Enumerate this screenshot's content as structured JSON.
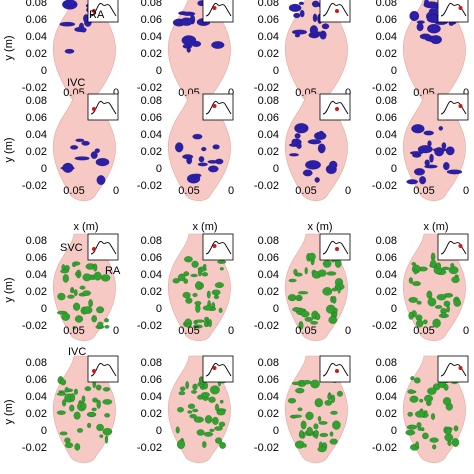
{
  "figure": {
    "y_axis_label": "y (m)",
    "x_axis_label": "x (m)",
    "y_tick_labels_rows_1_2": [
      "0.08",
      "0.06",
      "0.04",
      "0.02",
      "0",
      "-0.02"
    ],
    "y_tick_labels_rows_3_4": [
      "0.08",
      "0.06",
      "0.04",
      "0.02",
      "0",
      "-0.02"
    ],
    "x_tick_labels": [
      "0.05",
      "0"
    ],
    "annotations": {
      "ra": "RA",
      "ivc": "IVC",
      "svc": "SVC"
    },
    "panel_grid": {
      "rows": 4,
      "columns": 4,
      "top_rows_structure_color": "#2b1fa8",
      "bottom_rows_structure_color": "#2fa32b",
      "atrium_color": "#f6c9c4",
      "marker_color": "#d01818"
    }
  }
}
